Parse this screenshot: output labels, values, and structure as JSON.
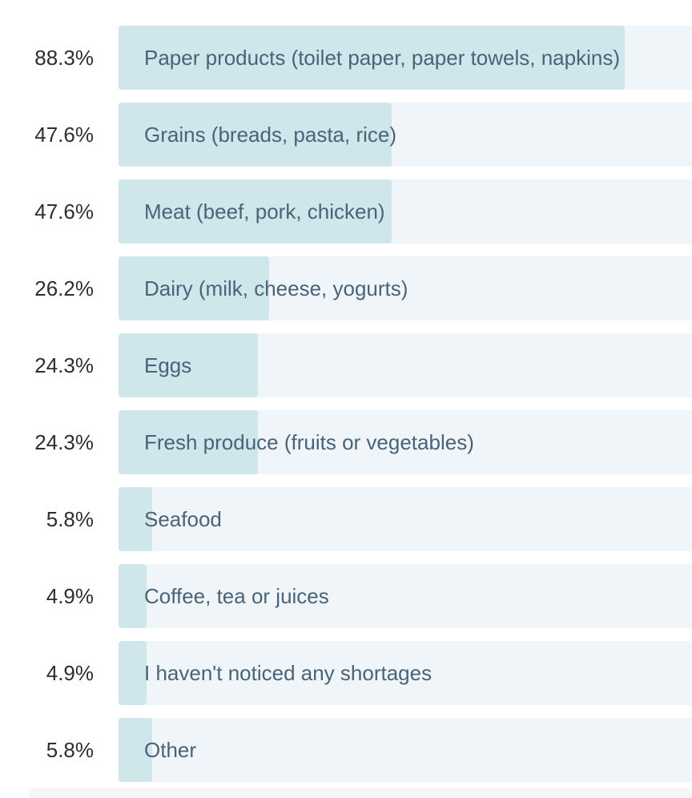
{
  "chart_data": {
    "type": "bar",
    "orientation": "horizontal",
    "categories": [
      "Paper products (toilet paper, paper towels, napkins)",
      "Grains (breads, pasta, rice)",
      "Meat (beef, pork, chicken)",
      "Dairy (milk, cheese, yogurts)",
      "Eggs",
      "Fresh produce (fruits or vegetables)",
      "Seafood",
      "Coffee, tea or juices",
      "I haven't noticed any shortages",
      "Other"
    ],
    "values": [
      88.3,
      47.6,
      47.6,
      26.2,
      24.3,
      24.3,
      5.8,
      4.9,
      4.9,
      5.8
    ],
    "value_labels": [
      "88.3%",
      "47.6%",
      "47.6%",
      "26.2%",
      "24.3%",
      "24.3%",
      "5.8%",
      "4.9%",
      "4.9%",
      "5.8%"
    ],
    "xlim": [
      0,
      100
    ],
    "grid": false,
    "colors": {
      "fill": "#cfe6ea",
      "track": "#eff5f8",
      "label": "#4a6378",
      "value": "#2b2f33"
    }
  }
}
